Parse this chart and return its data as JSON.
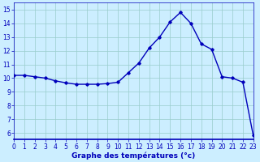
{
  "hours": [
    0,
    1,
    2,
    3,
    4,
    5,
    6,
    7,
    8,
    9,
    10,
    11,
    12,
    13,
    14,
    15,
    16,
    17,
    18,
    19,
    20,
    21,
    22,
    23
  ],
  "temperatures": [
    10.2,
    10.2,
    10.1,
    10.0,
    9.8,
    9.65,
    9.55,
    9.55,
    9.55,
    9.6,
    9.7,
    10.4,
    11.1,
    12.2,
    13.0,
    14.1,
    14.8,
    14.0,
    12.5,
    12.1,
    10.1,
    10.0,
    9.7,
    5.8
  ],
  "line_color": "#0000bb",
  "marker": "D",
  "marker_size": 1.8,
  "bg_color": "#cceeff",
  "grid_color": "#99cccc",
  "xlabel": "Graphe des températures (°c)",
  "xlim": [
    0,
    23
  ],
  "ylim": [
    5.5,
    15.5
  ],
  "yticks": [
    6,
    7,
    8,
    9,
    10,
    11,
    12,
    13,
    14,
    15
  ],
  "xticks": [
    0,
    1,
    2,
    3,
    4,
    5,
    6,
    7,
    8,
    9,
    10,
    11,
    12,
    13,
    14,
    15,
    16,
    17,
    18,
    19,
    20,
    21,
    22,
    23
  ],
  "tick_label_fontsize": 5.5,
  "xlabel_fontsize": 6.5,
  "linewidth": 1.0
}
